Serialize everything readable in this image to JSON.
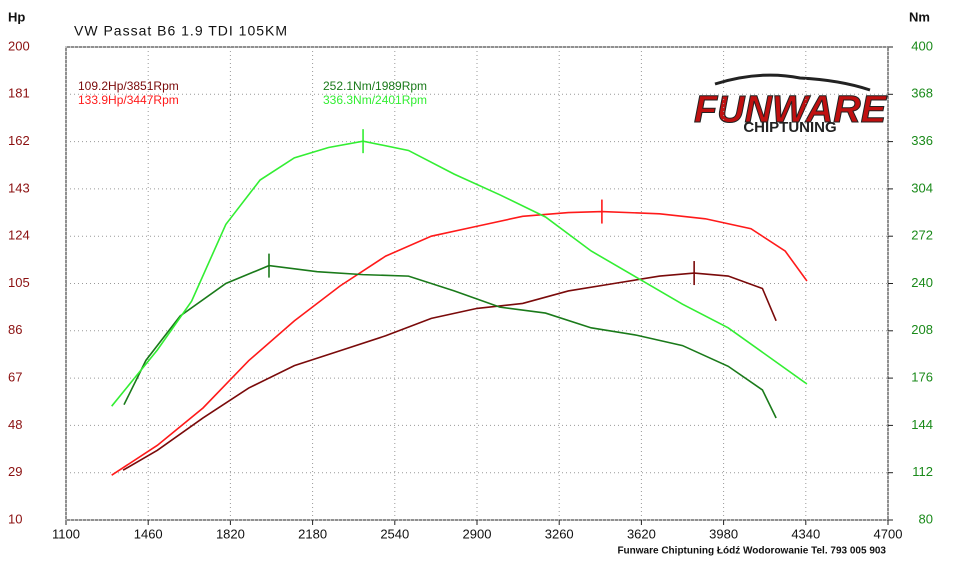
{
  "chart_data": {
    "type": "line",
    "title": "VW Passat B6 1.9 TDI 105KM",
    "y_label": "Hp",
    "y2_label": "Nm",
    "xlim": [
      1100,
      4700
    ],
    "xticks": [
      1100,
      1460,
      1820,
      2180,
      2540,
      2900,
      3260,
      3620,
      3980,
      4340,
      4700
    ],
    "ylim": [
      10,
      200
    ],
    "yticks": [
      10,
      29,
      48,
      67,
      86,
      105,
      124,
      143,
      162,
      181,
      200
    ],
    "y2lim": [
      80,
      400
    ],
    "y2ticks": [
      80,
      112,
      144,
      176,
      208,
      240,
      272,
      304,
      336,
      368,
      400
    ],
    "grid": true,
    "series": [
      {
        "color": "#7a0a0a",
        "axis": "y",
        "x": [
          1350,
          1500,
          1700,
          1900,
          2100,
          2300,
          2500,
          2700,
          2900,
          3100,
          3300,
          3500,
          3700,
          3851,
          4000,
          4150,
          4210
        ],
        "values": [
          30,
          38,
          51,
          63,
          72,
          78,
          84,
          91,
          95,
          97,
          102,
          105,
          108,
          109.2,
          108,
          103,
          90
        ]
      },
      {
        "color": "#ff1a1a",
        "axis": "y",
        "x": [
          1300,
          1500,
          1700,
          1900,
          2100,
          2300,
          2500,
          2700,
          2900,
          3100,
          3300,
          3447,
          3700,
          3900,
          4100,
          4250,
          4345
        ],
        "values": [
          28,
          40,
          55,
          74,
          90,
          104,
          116,
          124,
          128,
          132,
          133.5,
          133.9,
          133,
          131,
          127,
          118,
          106
        ]
      },
      {
        "color": "#1a7a1a",
        "axis": "y2",
        "x": [
          1354,
          1450,
          1600,
          1800,
          1989,
          2200,
          2400,
          2600,
          2800,
          3000,
          3200,
          3400,
          3600,
          3800,
          4000,
          4150,
          4210
        ],
        "values": [
          158,
          188,
          218,
          240,
          252.1,
          248,
          246,
          245,
          235,
          224,
          220,
          210,
          205,
          198,
          184,
          168,
          149
        ]
      },
      {
        "color": "#33ee33",
        "axis": "y2",
        "x": [
          1300,
          1500,
          1650,
          1800,
          1950,
          2100,
          2250,
          2401,
          2600,
          2800,
          3000,
          3200,
          3400,
          3600,
          3800,
          4000,
          4200,
          4345
        ],
        "values": [
          157,
          195,
          228,
          280,
          310,
          325,
          332,
          336.3,
          330,
          314,
          300,
          285,
          262,
          244,
          226,
          210,
          188,
          172
        ]
      }
    ],
    "annotations": [
      {
        "text": "109.2Hp/3851Rpm",
        "color": "#7a0a0a"
      },
      {
        "text": "133.9Hp/3447Rpm",
        "color": "#ff1a1a"
      },
      {
        "text": "252.1Nm/1989Rpm",
        "color": "#1a7a1a"
      },
      {
        "text": "336.3Nm/2401Rpm",
        "color": "#33ee33"
      }
    ],
    "logo": {
      "brand": "FUNWARE",
      "sub": "CHIPTUNING"
    },
    "footer": "Funware Chiptuning Łódź Wodorowanie Tel. 793 005 903"
  }
}
